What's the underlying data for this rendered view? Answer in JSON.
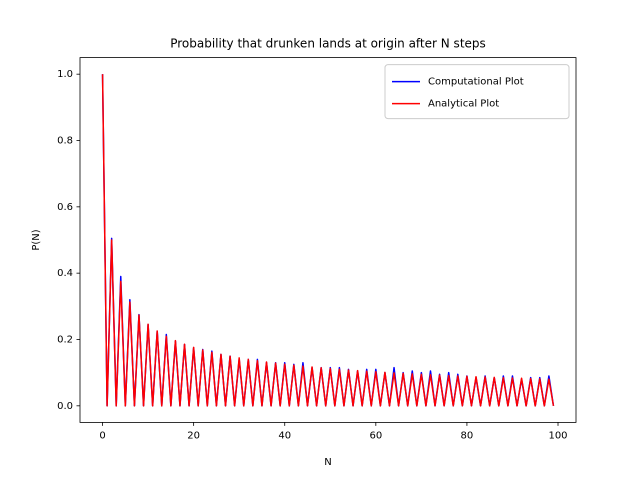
{
  "chart_data": {
    "type": "line",
    "title": "Probability that drunken lands at origin after N steps",
    "xlabel": "N",
    "ylabel": "P(N)",
    "x": [
      0,
      1,
      2,
      3,
      4,
      5,
      6,
      7,
      8,
      9,
      10,
      11,
      12,
      13,
      14,
      15,
      16,
      17,
      18,
      19,
      20,
      21,
      22,
      23,
      24,
      25,
      26,
      27,
      28,
      29,
      30,
      31,
      32,
      33,
      34,
      35,
      36,
      37,
      38,
      39,
      40,
      41,
      42,
      43,
      44,
      45,
      46,
      47,
      48,
      49,
      50,
      51,
      52,
      53,
      54,
      55,
      56,
      57,
      58,
      59,
      60,
      61,
      62,
      63,
      64,
      65,
      66,
      67,
      68,
      69,
      70,
      71,
      72,
      73,
      74,
      75,
      76,
      77,
      78,
      79,
      80,
      81,
      82,
      83,
      84,
      85,
      86,
      87,
      88,
      89,
      90,
      91,
      92,
      93,
      94,
      95,
      96,
      97,
      98,
      99
    ],
    "series": [
      {
        "name": "Computational Plot",
        "color": "#0000ff",
        "values": [
          1,
          0,
          0.505,
          0,
          0.39,
          0,
          0.32,
          0,
          0.275,
          0,
          0.245,
          0,
          0.225,
          0,
          0.215,
          0,
          0.195,
          0,
          0.185,
          0,
          0.175,
          0,
          0.17,
          0,
          0.165,
          0,
          0.155,
          0,
          0.15,
          0,
          0.14,
          0,
          0.14,
          0,
          0.14,
          0,
          0.13,
          0,
          0.13,
          0,
          0.13,
          0,
          0.125,
          0,
          0.13,
          0,
          0.115,
          0,
          0.115,
          0,
          0.115,
          0,
          0.115,
          0,
          0.11,
          0,
          0.105,
          0,
          0.11,
          0,
          0.11,
          0,
          0.1,
          0,
          0.115,
          0,
          0.1,
          0,
          0.105,
          0,
          0.1,
          0,
          0.105,
          0,
          0.095,
          0,
          0.1,
          0,
          0.095,
          0,
          0.09,
          0,
          0.085,
          0,
          0.09,
          0,
          0.085,
          0,
          0.09,
          0,
          0.09,
          0,
          0.08,
          0,
          0.085,
          0,
          0.085,
          0,
          0.09,
          0
        ]
      },
      {
        "name": "Analytical Plot",
        "color": "#ff0000",
        "values": [
          1,
          0,
          0.5,
          0,
          0.375,
          0,
          0.3125,
          0,
          0.2734,
          0,
          0.2461,
          0,
          0.2256,
          0,
          0.2095,
          0,
          0.1964,
          0,
          0.1855,
          0,
          0.1762,
          0,
          0.1682,
          0,
          0.1612,
          0,
          0.155,
          0,
          0.1494,
          0,
          0.1445,
          0,
          0.14,
          0,
          0.1359,
          0,
          0.1321,
          0,
          0.1286,
          0,
          0.1254,
          0,
          0.1224,
          0,
          0.1196,
          0,
          0.117,
          0,
          0.1146,
          0,
          0.1123,
          0,
          0.1101,
          0,
          0.1081,
          0,
          0.1061,
          0,
          0.1043,
          0,
          0.1026,
          0,
          0.1009,
          0,
          0.0993,
          0,
          0.0978,
          0,
          0.0964,
          0,
          0.095,
          0,
          0.0937,
          0,
          0.0924,
          0,
          0.0912,
          0,
          0.09,
          0,
          0.0889,
          0,
          0.0878,
          0,
          0.0868,
          0,
          0.0858,
          0,
          0.0848,
          0,
          0.0839,
          0,
          0.083,
          0,
          0.0821,
          0,
          0.0813,
          0,
          0.0805,
          0
        ]
      }
    ],
    "xlim": [
      -4.95,
      103.95
    ],
    "xticks": [
      0,
      20,
      40,
      60,
      80,
      100
    ],
    "ylim": [
      -0.05,
      1.05
    ],
    "yticks": [
      {
        "value": 0,
        "label": "0.0"
      },
      0.2,
      0.4,
      0.6,
      0.8,
      {
        "value": 1,
        "label": "1.0"
      }
    ],
    "legend": "upper right",
    "grid": false
  }
}
